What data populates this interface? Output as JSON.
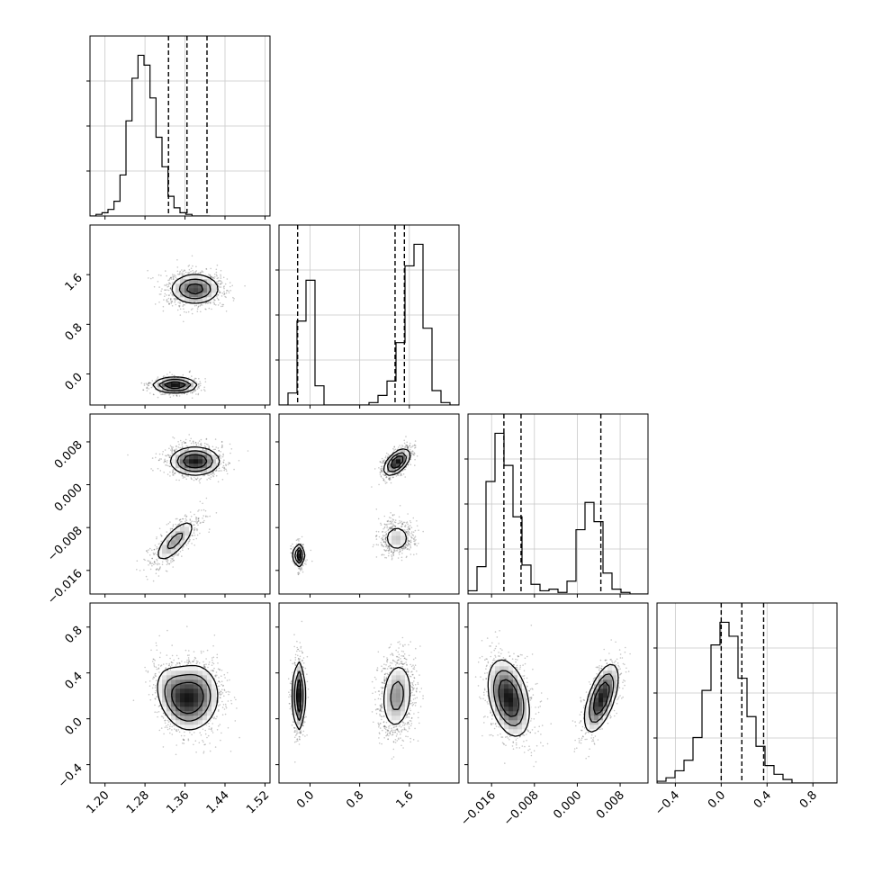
{
  "chart_data": {
    "type": "corner",
    "n_params": 4,
    "param_ranges": [
      [
        1.17,
        1.53
      ],
      [
        -0.5,
        2.4
      ],
      [
        -0.0204,
        0.0132
      ],
      [
        -0.56,
        1.01
      ]
    ],
    "ticks": [
      [
        "1.20",
        "1.28",
        "1.36",
        "1.44",
        "1.52"
      ],
      [
        "0.0",
        "0.8",
        "1.6"
      ],
      [
        "−0.016",
        "−0.008",
        "0.000",
        "0.008"
      ],
      [
        "−0.4",
        "0.0",
        "0.4",
        "0.8"
      ]
    ],
    "tick_values": [
      [
        1.2,
        1.28,
        1.36,
        1.44,
        1.52
      ],
      [
        0.0,
        0.8,
        1.6
      ],
      [
        -0.016,
        -0.008,
        0.0,
        0.008
      ],
      [
        -0.4,
        0.0,
        0.4,
        0.8
      ]
    ],
    "quantiles": [
      [
        1.327,
        1.364,
        1.404
      ],
      [
        -0.2,
        1.37,
        1.52
      ],
      [
        -0.0137,
        -0.0105,
        0.0044
      ],
      [
        0.0,
        0.18,
        0.37
      ]
    ],
    "histograms": [
      {
        "bin_start": 1.17,
        "bin_width": 0.012,
        "counts": [
          0,
          1,
          2,
          4,
          9,
          25,
          58,
          84,
          98,
          92,
          72,
          48,
          30,
          12,
          5,
          2,
          1,
          0,
          0,
          0
        ]
      },
      {
        "bin_start": -0.5,
        "bin_width": 0.145,
        "counts": [
          0,
          5,
          35,
          52,
          8,
          0,
          0,
          0,
          0,
          0,
          1,
          4,
          10,
          26,
          58,
          67,
          32,
          6,
          1,
          0
        ]
      },
      {
        "bin_start": -0.0204,
        "bin_width": 0.00168,
        "counts": [
          2,
          17,
          70,
          100,
          80,
          48,
          18,
          6,
          2,
          3,
          1,
          8,
          40,
          57,
          45,
          13,
          3,
          1,
          0,
          0
        ]
      },
      {
        "bin_start": -0.56,
        "bin_width": 0.0785,
        "counts": [
          1,
          3,
          7,
          13,
          26,
          53,
          79,
          92,
          84,
          60,
          38,
          21,
          10,
          5,
          2,
          0,
          0,
          0,
          0,
          0
        ]
      }
    ],
    "modes": [
      {
        "weight": 0.65,
        "mean": [
          1.38,
          1.37,
          0.0044,
          0.2
        ],
        "sd": [
          0.028,
          0.14,
          0.0015,
          0.16
        ],
        "rho": {
          "1-3": -0.35
        }
      },
      {
        "weight": 0.35,
        "mean": [
          1.34,
          -0.18,
          -0.0105,
          0.2
        ],
        "sd": [
          0.025,
          0.07,
          0.0025,
          0.16
        ],
        "rho": {
          "0-2": 0.75,
          "0-3": -0.35,
          "2-3": -0.45
        }
      }
    ],
    "mode_overrides": [
      {
        "pair": "2-1",
        "modes": [
          {
            "weight": 0.48,
            "mean": [
              1.38,
              1.4,
              0.0042,
              0.2
            ],
            "sd": [
              0.028,
              0.12,
              0.0014,
              0.16
            ],
            "rho": {
              "1-2": 0.55
            }
          },
          {
            "weight": 0.32,
            "mean": [
              1.38,
              1.4,
              -0.01,
              0.2
            ],
            "sd": [
              0.028,
              0.14,
              0.0017,
              0.16
            ],
            "rho": {}
          },
          {
            "weight": 0.2,
            "mean": [
              1.34,
              -0.18,
              -0.0132,
              0.2
            ],
            "sd": [
              0.025,
              0.05,
              0.0012,
              0.16
            ],
            "rho": {}
          }
        ]
      },
      {
        "pair": "3-2",
        "modes": [
          {
            "weight": 0.62,
            "mean": [
              1.36,
              1.3,
              -0.0128,
              0.18
            ],
            "sd": [
              0.03,
              0.2,
              0.0022,
              0.19
            ],
            "rho": {
              "2-3": -0.35
            }
          },
          {
            "weight": 0.38,
            "mean": [
              1.36,
              1.3,
              0.0045,
              0.18
            ],
            "sd": [
              0.03,
              0.2,
              0.0018,
              0.17
            ],
            "rho": {
              "2-3": 0.6
            }
          }
        ]
      },
      {
        "pair": "3-1",
        "modes": [
          {
            "weight": 0.62,
            "mean": [
              1.36,
              1.4,
              0.0,
              0.2
            ],
            "sd": [
              0.03,
              0.15,
              0.002,
              0.18
            ],
            "rho": {
              "1-3": 0.15
            }
          },
          {
            "weight": 0.38,
            "mean": [
              1.36,
              -0.18,
              0.0,
              0.2
            ],
            "sd": [
              0.03,
              0.055,
              0.002,
              0.17
            ],
            "rho": {}
          }
        ]
      }
    ],
    "grid": true
  }
}
